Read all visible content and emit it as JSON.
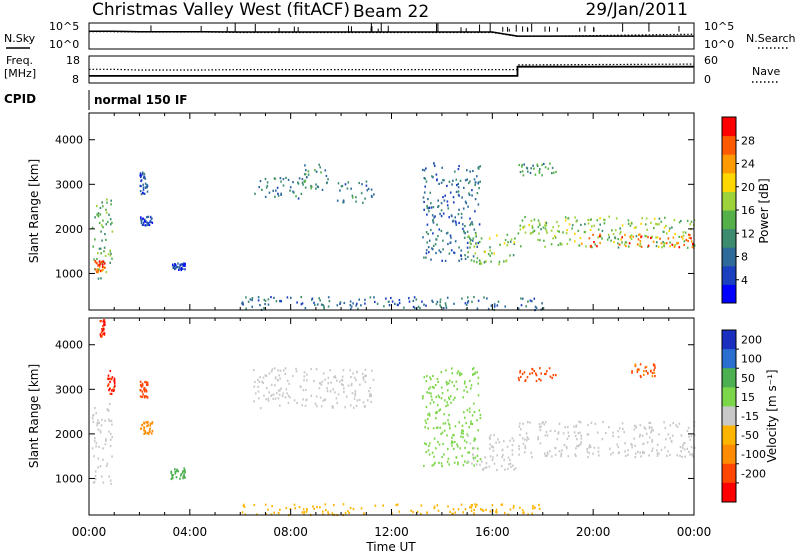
{
  "header": {
    "station": "Christmas Valley West (fitACF)",
    "beam": "Beam 22",
    "date": "29/Jan/2011"
  },
  "labels": {
    "nsky": "N.Sky",
    "nsearch": "N.Search",
    "freq_line1": "Freq.",
    "freq_line2": "[MHz]",
    "nave": "Nave",
    "cpid": "CPID",
    "cpid_value": "normal 150 IF"
  },
  "colors": {
    "power": [
      "#0000ff",
      "#1a3fbf",
      "#2e6a9a",
      "#3d8c6f",
      "#55b04a",
      "#9dd23a",
      "#ffd700",
      "#ff9a00",
      "#ff5a00",
      "#ff0000"
    ],
    "velocity": [
      "#1a2fbf",
      "#2a6fd0",
      "#4caf50",
      "#7bd64a",
      "#c8c8c8",
      "#ffb400",
      "#ff8c00",
      "#ff4500",
      "#ff0000"
    ],
    "ground_scatter": "#b8b8b0"
  },
  "chart_data": [
    {
      "type": "line",
      "name": "noise panel",
      "ylabel_left": "N.Sky",
      "ylabel_right": "N.Search",
      "left_ticks": [
        "10^5",
        "10^0"
      ],
      "right_ticks": [
        "10^5",
        "10^0"
      ],
      "yscale": "log",
      "series": [
        {
          "name": "N.Sky",
          "style": "solid",
          "x": [
            0.0,
            0.9,
            2.0,
            4.5,
            6.0,
            16.0,
            17.0,
            20.0,
            24.0
          ],
          "y": [
            4000,
            4000,
            3000,
            3000,
            2500,
            2500,
            300,
            300,
            300
          ]
        },
        {
          "name": "N.Search",
          "style": "dotted",
          "x": [
            0.0,
            0.9,
            2.0,
            4.5,
            6.0,
            16.0,
            17.0,
            20.0,
            24.0
          ],
          "y": [
            3000,
            3000,
            2500,
            2500,
            2000,
            2000,
            250,
            400,
            800
          ]
        }
      ]
    },
    {
      "type": "line",
      "name": "frequency / nave panel",
      "left_ticks": [
        "18",
        "8"
      ],
      "right_ticks": [
        "60",
        "0"
      ],
      "series": [
        {
          "name": "Freq.",
          "style": "solid",
          "x": [
            0.0,
            0.9,
            2.0,
            4.5,
            6.0,
            17.0,
            17.0,
            24.0
          ],
          "y": [
            10.3,
            10.3,
            10.3,
            10.3,
            10.3,
            10.3,
            14.5,
            14.5
          ]
        },
        {
          "name": "Nave",
          "style": "dotted",
          "x": [
            0.0,
            0.9,
            2.0,
            4.5,
            6.0,
            17.0,
            17.0,
            24.0
          ],
          "y": [
            32,
            32,
            30,
            30,
            31,
            31,
            44,
            46
          ]
        }
      ]
    },
    {
      "type": "heatmap",
      "name": "power",
      "xlabel": "",
      "ylabel": "Slant Range [km]",
      "x_ticks": [],
      "y_ticks": [
        1000,
        2000,
        3000,
        4000
      ],
      "xlim": [
        0,
        24
      ],
      "ylim": [
        180,
        4600
      ],
      "colorbar_label": "Power [dB]",
      "colorbar_ticks": [
        4,
        8,
        12,
        16,
        20,
        24,
        28
      ],
      "colorbar_range": [
        0,
        32
      ],
      "regions": [
        {
          "t": [
            0.1,
            0.9
          ],
          "r": [
            900,
            2700
          ],
          "value": 14
        },
        {
          "t": [
            0.2,
            0.6
          ],
          "r": [
            1050,
            1300
          ],
          "value": 28
        },
        {
          "t": [
            2.0,
            2.5
          ],
          "r": [
            2100,
            2300
          ],
          "value": 6
        },
        {
          "t": [
            2.0,
            2.3
          ],
          "r": [
            2800,
            3300
          ],
          "value": 6
        },
        {
          "t": [
            3.2,
            3.8
          ],
          "r": [
            1100,
            1250
          ],
          "value": 4
        },
        {
          "t": [
            6.5,
            8.5
          ],
          "r": [
            2700,
            3200
          ],
          "value": 10
        },
        {
          "t": [
            8.5,
            9.5
          ],
          "r": [
            2900,
            3500
          ],
          "value": 11
        },
        {
          "t": [
            9.8,
            11.3
          ],
          "r": [
            2600,
            3100
          ],
          "value": 9
        },
        {
          "t": [
            13.2,
            15.5
          ],
          "r": [
            1300,
            3500
          ],
          "value": 8
        },
        {
          "t": [
            15.0,
            16.9
          ],
          "r": [
            1200,
            1900
          ],
          "value": 16
        },
        {
          "t": [
            17.0,
            24.0
          ],
          "r": [
            1600,
            2300
          ],
          "value": 16
        },
        {
          "t": [
            19.5,
            24.0
          ],
          "r": [
            1600,
            1900
          ],
          "value": 26
        },
        {
          "t": [
            17.0,
            18.5
          ],
          "r": [
            3200,
            3500
          ],
          "value": 12
        },
        {
          "t": [
            6.0,
            18.0
          ],
          "r": [
            200,
            500
          ],
          "value": 8
        }
      ]
    },
    {
      "type": "heatmap",
      "name": "velocity",
      "xlabel": "Time UT",
      "ylabel": "Slant Range [km]",
      "x_ticks": [
        "00:00",
        "04:00",
        "08:00",
        "12:00",
        "16:00",
        "20:00",
        "00:00"
      ],
      "y_ticks": [
        1000,
        2000,
        3000,
        4000
      ],
      "xlim": [
        0,
        24
      ],
      "ylim": [
        180,
        4600
      ],
      "colorbar_label": "Velocity [m s⁻¹]",
      "colorbar_ticks": [
        "200",
        "100",
        "50",
        "15",
        "-15",
        "-50",
        "-100",
        "-200"
      ],
      "regions": [
        {
          "t": [
            0.1,
            0.9
          ],
          "r": [
            900,
            2700
          ],
          "value": 0
        },
        {
          "t": [
            0.7,
            1.0
          ],
          "r": [
            2900,
            3500
          ],
          "value": -200
        },
        {
          "t": [
            0.4,
            0.6
          ],
          "r": [
            4200,
            4600
          ],
          "value": -200
        },
        {
          "t": [
            2.0,
            2.5
          ],
          "r": [
            2000,
            2300
          ],
          "value": -60
        },
        {
          "t": [
            2.0,
            2.3
          ],
          "r": [
            2800,
            3200
          ],
          "value": -150
        },
        {
          "t": [
            3.2,
            3.8
          ],
          "r": [
            1000,
            1250
          ],
          "value": 60
        },
        {
          "t": [
            6.5,
            11.3
          ],
          "r": [
            2600,
            3500
          ],
          "value": 0
        },
        {
          "t": [
            13.2,
            15.5
          ],
          "r": [
            1300,
            3500
          ],
          "value": 40
        },
        {
          "t": [
            15.0,
            16.9
          ],
          "r": [
            1200,
            2000
          ],
          "value": 0
        },
        {
          "t": [
            17.0,
            24.0
          ],
          "r": [
            1500,
            2300
          ],
          "value": 0
        },
        {
          "t": [
            17.0,
            18.5
          ],
          "r": [
            3200,
            3500
          ],
          "value": -180
        },
        {
          "t": [
            21.5,
            22.5
          ],
          "r": [
            3300,
            3600
          ],
          "value": -100
        },
        {
          "t": [
            6.0,
            18.0
          ],
          "r": [
            200,
            450
          ],
          "value": -30
        }
      ]
    }
  ]
}
